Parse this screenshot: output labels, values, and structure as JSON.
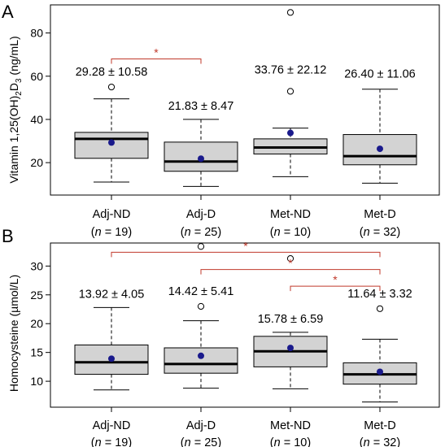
{
  "colors": {
    "box_fill": "#d3d3d3",
    "mean_dot": "#1a1a8c",
    "sig": "#c0392b",
    "axis": "#000000"
  },
  "chart_data": [
    {
      "type": "box",
      "panel_label": "A",
      "ylabel_main": "Vitamin 1,25(OH)",
      "ylabel_sub": "2",
      "ylabel_main2": "D",
      "ylabel_sub2": "3",
      "ylabel_tail": " (ng/mL)",
      "ylim": [
        5,
        93
      ],
      "yticks": [
        20,
        40,
        60,
        80
      ],
      "groups": [
        {
          "name": "Adj-ND",
          "n_label": "(n = 19)",
          "n_prefix": "(",
          "n_var": "n",
          "n_rest": " = 19)",
          "stat": "29.28 ± 10.58",
          "whisker_low": 11,
          "q1": 22,
          "median": 31,
          "q3": 34,
          "whisker_high": 49.5,
          "mean": 29.28,
          "outliers": [
            55
          ]
        },
        {
          "name": "Adj-D",
          "n_label": "(n = 25)",
          "n_prefix": "(",
          "n_var": "n",
          "n_rest": " = 25)",
          "stat": "21.83 ± 8.47",
          "whisker_low": 9,
          "q1": 16,
          "median": 20.5,
          "q3": 29.5,
          "whisker_high": 40,
          "mean": 21.83,
          "outliers": []
        },
        {
          "name": "Met-ND",
          "n_label": "(n = 10)",
          "n_prefix": "(",
          "n_var": "n",
          "n_rest": " = 10)",
          "stat": "33.76 ± 22.12",
          "whisker_low": 13.5,
          "q1": 24,
          "median": 27,
          "q3": 31,
          "whisker_high": 36,
          "mean": 33.76,
          "outliers": [
            53,
            89.5
          ]
        },
        {
          "name": "Met-D",
          "n_label": "(n = 32)",
          "n_prefix": "(",
          "n_var": "n",
          "n_rest": " = 32)",
          "stat": "26.40 ± 11.06",
          "whisker_low": 10.5,
          "q1": 19,
          "median": 23,
          "q3": 33,
          "whisker_high": 54,
          "mean": 26.4,
          "outliers": []
        }
      ],
      "significance": [
        {
          "from": 0,
          "to": 1,
          "y": 68,
          "label": "*"
        }
      ]
    },
    {
      "type": "box",
      "panel_label": "B",
      "ylabel": "Homocysteine (µmol/L)",
      "ylim": [
        5.5,
        34
      ],
      "yticks": [
        10,
        15,
        20,
        25,
        30
      ],
      "groups": [
        {
          "name": "Adj-ND",
          "n_label": "(n = 19)",
          "n_prefix": "(",
          "n_var": "n",
          "n_rest": " = 19)",
          "stat": "13.92 ± 4.05",
          "whisker_low": 8.5,
          "q1": 11.2,
          "median": 13.3,
          "q3": 16.3,
          "whisker_high": 22.8,
          "mean": 13.92,
          "outliers": []
        },
        {
          "name": "Adj-D",
          "n_label": "(n = 25)",
          "n_prefix": "(",
          "n_var": "n",
          "n_rest": " = 25)",
          "stat": "14.42 ± 5.41",
          "whisker_low": 8.8,
          "q1": 11.4,
          "median": 13,
          "q3": 15.8,
          "whisker_high": 20.5,
          "mean": 14.42,
          "outliers": [
            23,
            33.4
          ]
        },
        {
          "name": "Met-ND",
          "n_label": "(n = 10)",
          "n_prefix": "(",
          "n_var": "n",
          "n_rest": " = 10)",
          "stat": "15.78 ± 6.59",
          "whisker_low": 8.7,
          "q1": 12.5,
          "median": 15.2,
          "q3": 17.8,
          "whisker_high": 18.5,
          "mean": 15.78,
          "outliers": [
            31.3
          ]
        },
        {
          "name": "Met-D",
          "n_label": "(n = 32)",
          "n_prefix": "(",
          "n_var": "n",
          "n_rest": " = 32)",
          "stat": "11.64 ± 3.32",
          "whisker_low": 6.4,
          "q1": 9.5,
          "median": 11.2,
          "q3": 13.2,
          "whisker_high": 17.3,
          "mean": 11.64,
          "outliers": [
            22.6
          ]
        }
      ],
      "significance": [
        {
          "from": 0,
          "to": 3,
          "y": 32.4,
          "label": "*"
        },
        {
          "from": 1,
          "to": 3,
          "y": 29.4,
          "label": "*"
        },
        {
          "from": 2,
          "to": 3,
          "y": 26.5,
          "label": "*"
        }
      ]
    }
  ]
}
